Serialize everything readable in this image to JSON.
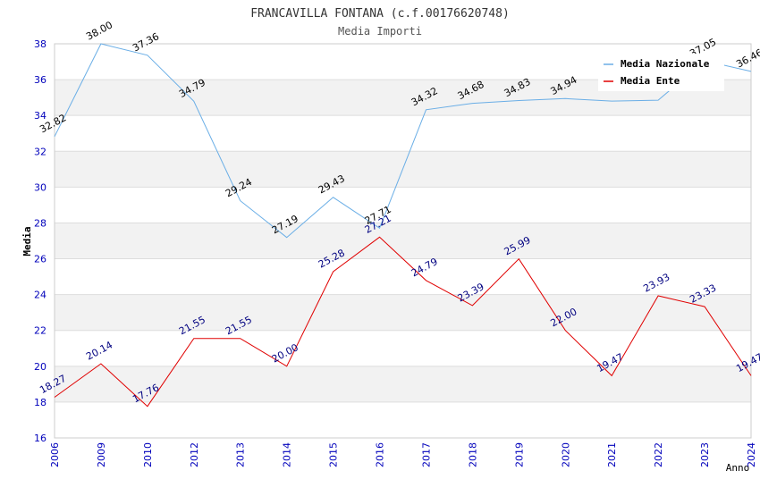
{
  "title": "FRANCAVILLA FONTANA (c.f.00176620748)",
  "subtitle": "Media Importi",
  "chart_data": {
    "type": "line",
    "title": "FRANCAVILLA FONTANA (c.f.00176620748)",
    "subtitle": "Media Importi",
    "xlabel": "Anno",
    "ylabel": "Media",
    "ylim": [
      16,
      38
    ],
    "yticks": [
      "16",
      "18",
      "20",
      "22",
      "24",
      "26",
      "28",
      "30",
      "32",
      "34",
      "36",
      "38"
    ],
    "categories": [
      "2006",
      "2009",
      "2010",
      "2012",
      "2013",
      "2014",
      "2015",
      "2016",
      "2017",
      "2018",
      "2019",
      "2020",
      "2021",
      "2022",
      "2023",
      "2024"
    ],
    "grid": "horizontal bands",
    "legend_position": "top-right",
    "series": [
      {
        "name": "Media Nazionale",
        "color": "#6aaee6",
        "label_color": "#000000",
        "values": [
          32.82,
          38.0,
          37.36,
          34.79,
          29.24,
          27.19,
          29.43,
          27.71,
          34.32,
          34.68,
          34.83,
          34.94,
          34.8,
          34.85,
          37.05,
          36.46
        ],
        "labels": [
          "32.82",
          "38.00",
          "37.36",
          "34.79",
          "29.24",
          "27.19",
          "29.43",
          "27.71",
          "34.32",
          "34.68",
          "34.83",
          "34.94",
          "",
          "",
          "37.05",
          "36.46"
        ]
      },
      {
        "name": "Media Ente",
        "color": "#e00000",
        "label_color": "#000080",
        "values": [
          18.27,
          20.14,
          17.76,
          21.55,
          21.55,
          20.0,
          25.28,
          27.21,
          24.79,
          23.39,
          25.99,
          22.0,
          19.47,
          23.93,
          23.33,
          19.47
        ],
        "labels": [
          "18.27",
          "20.14",
          "17.76",
          "21.55",
          "21.55",
          "20.00",
          "25.28",
          "27.21",
          "24.79",
          "23.39",
          "25.99",
          "22.00",
          "19.47",
          "23.93",
          "23.33",
          "19.47"
        ]
      }
    ]
  }
}
